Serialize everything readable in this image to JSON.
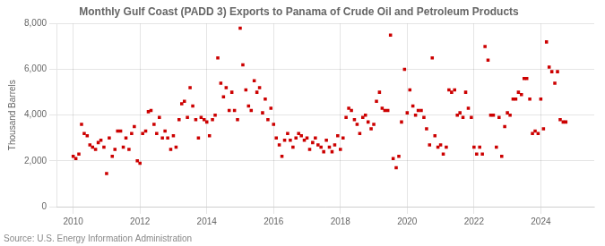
{
  "chart_data": {
    "type": "scatter",
    "title": "Monthly Gulf Coast (PADD 3) Exports to Panama of Crude Oil and Petroleum Products",
    "y_label": "Thousand Barrels",
    "annotations": [
      "Source: U.S. Energy Information Administration"
    ],
    "color": "#cc0000",
    "marker": "square",
    "grid": true,
    "xlim": [
      2009.5,
      2025.6
    ],
    "xticks": [
      2010,
      2012,
      2014,
      2016,
      2018,
      2020,
      2022,
      2024
    ],
    "ylim": [
      0,
      8000
    ],
    "yticks": [
      0,
      {
        "value": 2000,
        "label": "2,000"
      },
      {
        "value": 4000,
        "label": "4,000"
      },
      {
        "value": 6000,
        "label": "6,000"
      },
      {
        "value": 8000,
        "label": "8,000"
      }
    ],
    "x": [
      2010.0,
      2010.08,
      2010.17,
      2010.25,
      2010.33,
      2010.42,
      2010.5,
      2010.58,
      2010.67,
      2010.75,
      2010.83,
      2010.92,
      2011.0,
      2011.08,
      2011.17,
      2011.25,
      2011.33,
      2011.42,
      2011.5,
      2011.58,
      2011.67,
      2011.75,
      2011.83,
      2011.92,
      2012.0,
      2012.08,
      2012.17,
      2012.25,
      2012.33,
      2012.42,
      2012.5,
      2012.58,
      2012.67,
      2012.75,
      2012.83,
      2012.92,
      2013.0,
      2013.08,
      2013.17,
      2013.25,
      2013.33,
      2013.42,
      2013.5,
      2013.58,
      2013.67,
      2013.75,
      2013.83,
      2013.92,
      2014.0,
      2014.08,
      2014.17,
      2014.25,
      2014.33,
      2014.42,
      2014.5,
      2014.58,
      2014.67,
      2014.75,
      2014.83,
      2014.92,
      2015.0,
      2015.08,
      2015.17,
      2015.25,
      2015.33,
      2015.42,
      2015.5,
      2015.58,
      2015.67,
      2015.75,
      2015.83,
      2015.92,
      2016.0,
      2016.08,
      2016.17,
      2016.25,
      2016.33,
      2016.42,
      2016.5,
      2016.58,
      2016.67,
      2016.75,
      2016.83,
      2016.92,
      2017.0,
      2017.08,
      2017.17,
      2017.25,
      2017.33,
      2017.42,
      2017.5,
      2017.58,
      2017.67,
      2017.75,
      2017.83,
      2017.92,
      2018.0,
      2018.08,
      2018.17,
      2018.25,
      2018.33,
      2018.42,
      2018.5,
      2018.58,
      2018.67,
      2018.75,
      2018.83,
      2018.92,
      2019.0,
      2019.08,
      2019.17,
      2019.25,
      2019.33,
      2019.42,
      2019.5,
      2019.58,
      2019.67,
      2019.75,
      2019.83,
      2019.92,
      2020.0,
      2020.08,
      2020.17,
      2020.25,
      2020.33,
      2020.42,
      2020.5,
      2020.58,
      2020.67,
      2020.75,
      2020.83,
      2020.92,
      2021.0,
      2021.08,
      2021.17,
      2021.25,
      2021.33,
      2021.42,
      2021.5,
      2021.58,
      2021.67,
      2021.75,
      2021.83,
      2021.92,
      2022.0,
      2022.08,
      2022.17,
      2022.25,
      2022.33,
      2022.42,
      2022.5,
      2022.58,
      2022.67,
      2022.75,
      2022.83,
      2022.92,
      2023.0,
      2023.08,
      2023.17,
      2023.25,
      2023.33,
      2023.42,
      2023.5,
      2023.58,
      2023.67,
      2023.75,
      2023.83,
      2023.92,
      2024.0,
      2024.08,
      2024.17,
      2024.25,
      2024.33,
      2024.42,
      2024.5,
      2024.58,
      2024.67,
      2024.75
    ],
    "values": [
      2200,
      2100,
      2300,
      3600,
      3200,
      3100,
      2700,
      2600,
      2500,
      2800,
      2900,
      2600,
      1450,
      3000,
      2200,
      2500,
      3300,
      3300,
      2600,
      3000,
      2500,
      3200,
      3500,
      2000,
      1900,
      3200,
      3300,
      4150,
      4200,
      3600,
      3200,
      3900,
      3000,
      3300,
      3000,
      2500,
      3100,
      2600,
      3800,
      4500,
      4600,
      3900,
      5200,
      4400,
      3800,
      3000,
      3900,
      3800,
      3700,
      3100,
      3800,
      4000,
      6500,
      5400,
      4800,
      5200,
      4200,
      5000,
      4200,
      3800,
      7800,
      6200,
      5100,
      4400,
      4200,
      5500,
      5000,
      5200,
      4100,
      4700,
      3800,
      4300,
      3600,
      3000,
      2700,
      2200,
      2900,
      3200,
      2900,
      2600,
      3000,
      3200,
      3100,
      2900,
      3000,
      2500,
      2800,
      3000,
      2700,
      2600,
      2400,
      2900,
      2600,
      2400,
      2700,
      3100,
      2500,
      3000,
      3900,
      4300,
      4200,
      3800,
      3600,
      3200,
      3900,
      4000,
      3700,
      3400,
      3600,
      4600,
      5000,
      4300,
      4200,
      4200,
      7500,
      2100,
      1700,
      2200,
      3700,
      6000,
      4100,
      5100,
      4400,
      4000,
      4200,
      4200,
      3900,
      3400,
      2700,
      6500,
      3100,
      2600,
      2700,
      2300,
      2600,
      5100,
      5000,
      5100,
      4000,
      4100,
      3900,
      5000,
      4300,
      3900,
      2600,
      2300,
      2600,
      2300,
      7000,
      6400,
      4000,
      4000,
      2600,
      3900,
      2200,
      3500,
      4100,
      4000,
      4700,
      4700,
      5000,
      4900,
      5600,
      5600,
      4700,
      3200,
      3300,
      3200,
      4700,
      3400,
      7200,
      6100,
      5900,
      5400,
      5900,
      3800,
      3700,
      3700
    ]
  }
}
